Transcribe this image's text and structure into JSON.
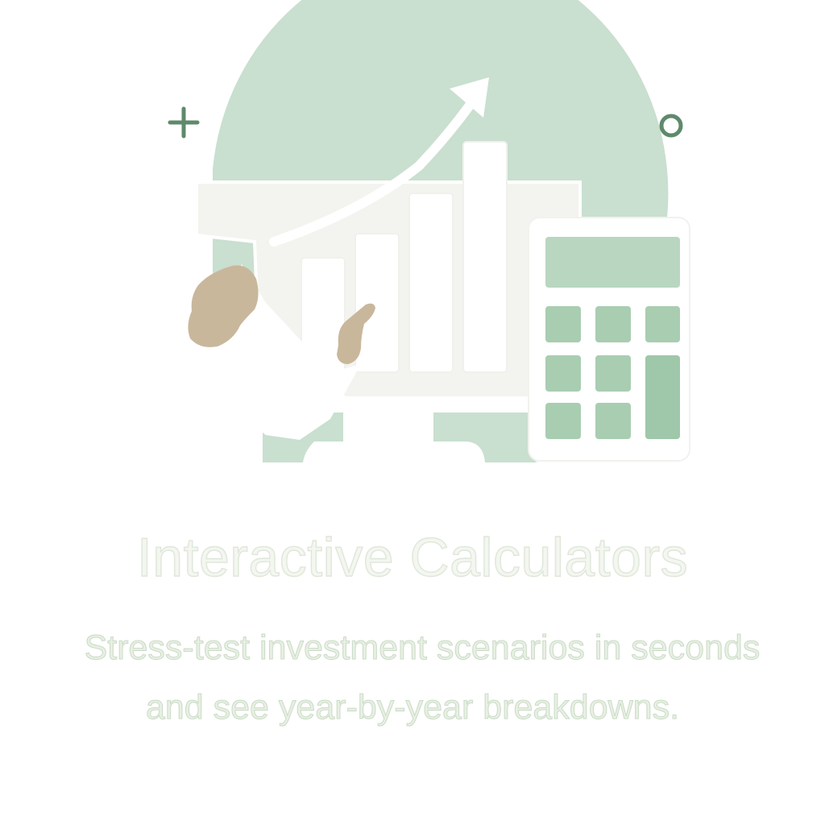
{
  "feature": {
    "title": "Interactive Calculators",
    "description_line1": "Stress-test investment scenarios in seconds",
    "description_line2": "and see year-by-year breakdowns."
  },
  "illustration": {
    "icons": [
      "plus-icon",
      "circle-icon",
      "trend-arrow-icon",
      "bar-chart-icon",
      "calculator-icon",
      "pointing-hand-icon"
    ],
    "colors": {
      "accent_green": "#c9dfcf",
      "key_green": "#a9cdb1",
      "skin": "#c9b79c",
      "panel": "#f3f4ef",
      "deco": "#5e8a6b"
    }
  }
}
